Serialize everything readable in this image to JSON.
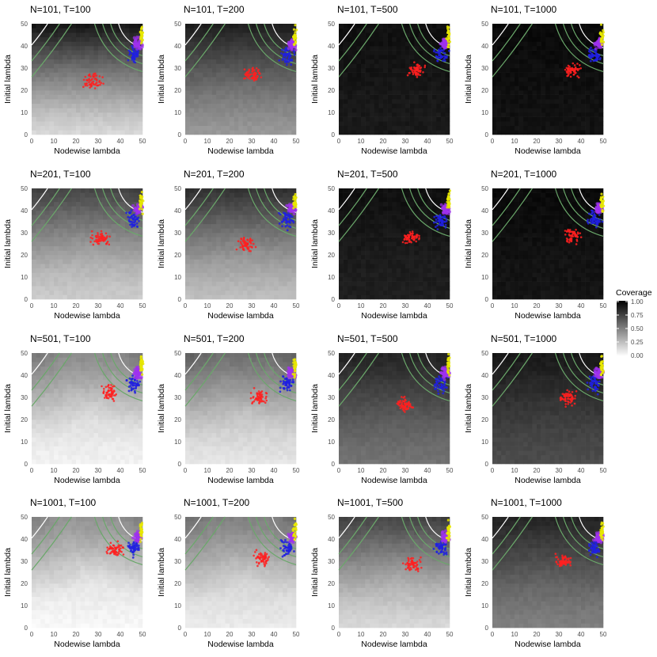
{
  "chart_data": {
    "type": "heatmap",
    "xlabel": "Nodewise lambda",
    "ylabel": "Initial lambda",
    "xlim": [
      0,
      50
    ],
    "ylim": [
      0,
      50
    ],
    "ticks": [
      "0",
      "10",
      "20",
      "30",
      "40",
      "50"
    ],
    "legend": {
      "title": "Coverage",
      "labels": [
        "1.00",
        "0.75",
        "0.50",
        "0.25",
        "0.00"
      ],
      "placement": "right"
    },
    "colors": {
      "low": "#ffffff",
      "high": "#000000",
      "contour_green": "#6aa86a",
      "contour_white": "#ffffff",
      "points": [
        "#ff2020",
        "#2020e0",
        "#a030f0",
        "#e8e800"
      ]
    },
    "panels": [
      {
        "title": "N=101, T=100",
        "coverage_top": 0.9,
        "coverage_bottom": 0.15,
        "red_center": [
          28,
          24
        ]
      },
      {
        "title": "N=101, T=200",
        "coverage_top": 0.85,
        "coverage_bottom": 0.4,
        "red_center": [
          30,
          27
        ]
      },
      {
        "title": "N=101, T=500",
        "coverage_top": 0.92,
        "coverage_bottom": 0.9,
        "red_center": [
          35,
          29
        ]
      },
      {
        "title": "N=101, T=1000",
        "coverage_top": 0.95,
        "coverage_bottom": 0.93,
        "red_center": [
          36,
          29
        ]
      },
      {
        "title": "N=201, T=100",
        "coverage_top": 0.65,
        "coverage_bottom": 0.2,
        "red_center": [
          31,
          27
        ]
      },
      {
        "title": "N=201, T=200",
        "coverage_top": 0.75,
        "coverage_bottom": 0.25,
        "red_center": [
          27,
          25
        ]
      },
      {
        "title": "N=201, T=500",
        "coverage_top": 0.92,
        "coverage_bottom": 0.88,
        "red_center": [
          33,
          28
        ]
      },
      {
        "title": "N=201, T=1000",
        "coverage_top": 0.95,
        "coverage_bottom": 0.92,
        "red_center": [
          36,
          29
        ]
      },
      {
        "title": "N=501, T=100",
        "coverage_top": 0.3,
        "coverage_bottom": 0.05,
        "red_center": [
          35,
          32
        ]
      },
      {
        "title": "N=501, T=200",
        "coverage_top": 0.45,
        "coverage_bottom": 0.1,
        "red_center": [
          33,
          30
        ]
      },
      {
        "title": "N=501, T=500",
        "coverage_top": 0.82,
        "coverage_bottom": 0.55,
        "red_center": [
          30,
          27
        ]
      },
      {
        "title": "N=501, T=1000",
        "coverage_top": 0.88,
        "coverage_bottom": 0.7,
        "red_center": [
          34,
          30
        ]
      },
      {
        "title": "N=1001, T=100",
        "coverage_top": 0.25,
        "coverage_bottom": 0.03,
        "red_center": [
          38,
          35
        ]
      },
      {
        "title": "N=1001, T=200",
        "coverage_top": 0.35,
        "coverage_bottom": 0.08,
        "red_center": [
          35,
          31
        ]
      },
      {
        "title": "N=1001, T=500",
        "coverage_top": 0.65,
        "coverage_bottom": 0.15,
        "red_center": [
          33,
          29
        ]
      },
      {
        "title": "N=1001, T=1000",
        "coverage_top": 0.82,
        "coverage_bottom": 0.5,
        "red_center": [
          32,
          30
        ]
      }
    ]
  }
}
